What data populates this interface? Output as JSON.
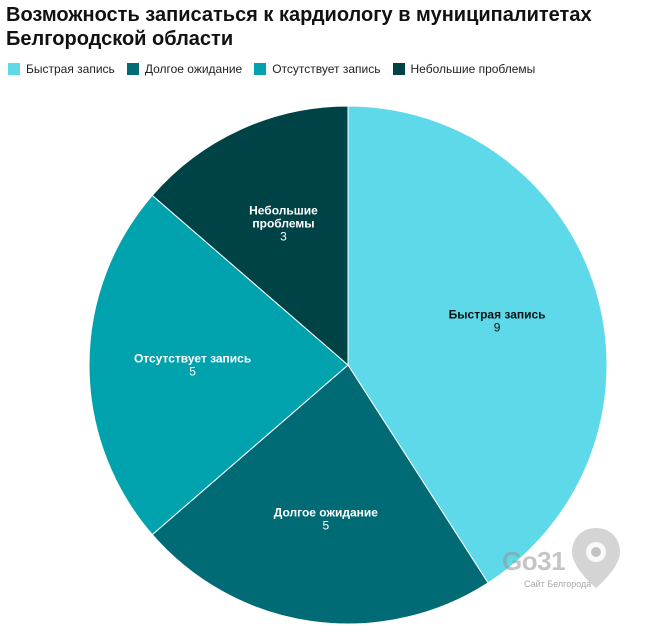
{
  "chart_data": {
    "type": "pie",
    "title": "Возможность записаться к кардиологу в муниципалитетах Белгородской области",
    "legend_position": "top-left",
    "slices": [
      {
        "label": "Быстрая запись",
        "legend_label": "Быстрая запись",
        "value": 9,
        "color": "#5ed9ea",
        "text_color": "#111111"
      },
      {
        "label": "Долгое ожидание",
        "legend_label": "Долгое ожидание",
        "value": 5,
        "color": "#006a75",
        "text_color": "#ffffff"
      },
      {
        "label": "Отсутствует запись",
        "legend_label": "Отсутствует запись",
        "value": 5,
        "color": "#00a2ae",
        "text_color": "#ffffff"
      },
      {
        "label": "Небольшие\nпроблемы",
        "legend_label": "Небольшие проблемы",
        "value": 3,
        "color": "#004347",
        "text_color": "#ffffff"
      }
    ]
  },
  "watermark": {
    "brand": "Go31",
    "subtitle": "Сайт Белгорода",
    "icon": "map-pin-icon"
  }
}
